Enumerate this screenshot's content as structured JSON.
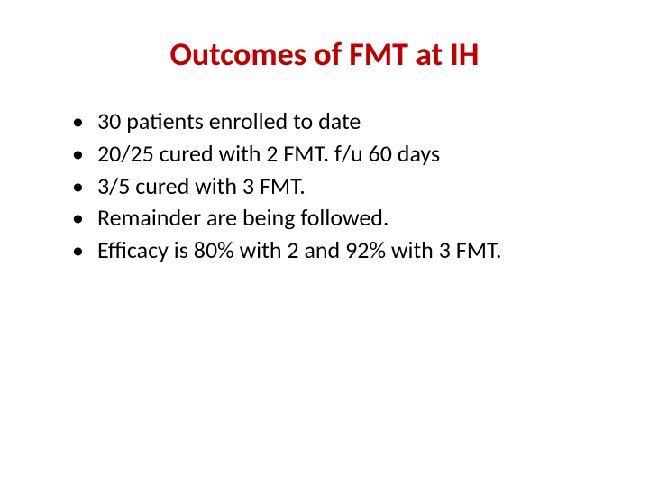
{
  "slide": {
    "title": "Outcomes of FMT at IH",
    "title_color": "#c00000",
    "title_fontsize": 36,
    "bullet_color": "#000000",
    "bullet_fontsize": 26,
    "background_color": "#ffffff",
    "bullets": [
      "30 patients enrolled to date",
      "20/25 cured with 2 FMT. f/u 60 days",
      "3/5 cured with 3 FMT.",
      "Remainder are being followed.",
      "Efficacy is 80% with 2 and 92% with 3 FMT."
    ]
  }
}
